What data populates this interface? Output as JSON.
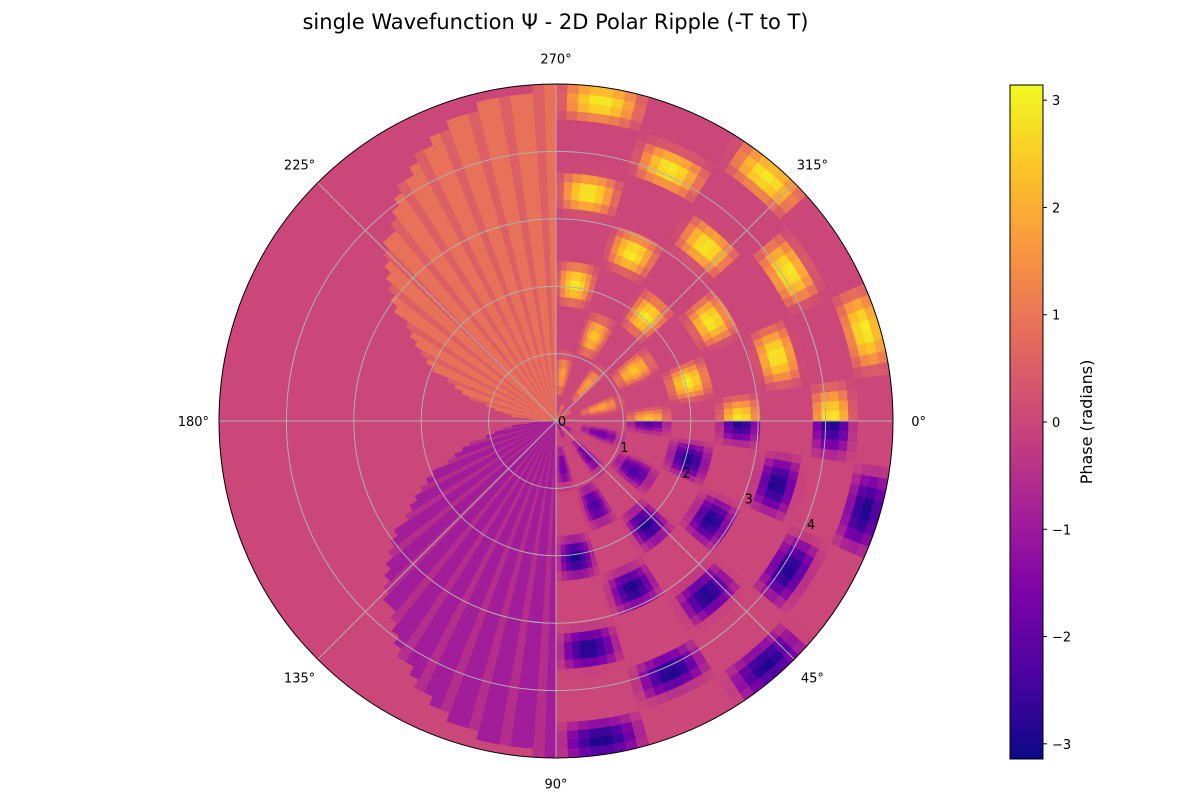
{
  "chart_data": {
    "type": "polar-heatmap",
    "title": "single Wavefunction Ψ - 2D Polar Ripple (-T to T)",
    "theta_direction": "clockwise",
    "theta_zero": "east",
    "theta_tick_labels": [
      "0°",
      "45°",
      "90°",
      "135°",
      "180°",
      "225°",
      "270°",
      "315°"
    ],
    "theta_ticks_deg": [
      0,
      45,
      90,
      135,
      180,
      225,
      270,
      315
    ],
    "r_tick_labels": [
      "0",
      "1",
      "2",
      "3",
      "4"
    ],
    "r_ticks": [
      0,
      1,
      2,
      3,
      4
    ],
    "r_max": 5,
    "grid": true,
    "colormap": "plasma",
    "value": "phase of wavefunction",
    "colorbar": {
      "label": "Phase (radians)",
      "vmin": -3.14159,
      "vmax": 3.14159,
      "ticks": [
        3,
        2,
        1,
        0,
        -1,
        -2,
        -3
      ],
      "tick_labels": [
        "3",
        "2",
        "1",
        "0",
        "−1",
        "−2",
        "−3"
      ]
    },
    "regions": [
      {
        "sector": "0° to 90°",
        "phase_sign": "negative",
        "peak_phase": -3.0
      },
      {
        "sector": "270° to 360°",
        "phase_sign": "positive",
        "peak_phase": 3.0
      },
      {
        "sector": "90° to 270°",
        "phase": 0
      }
    ]
  }
}
